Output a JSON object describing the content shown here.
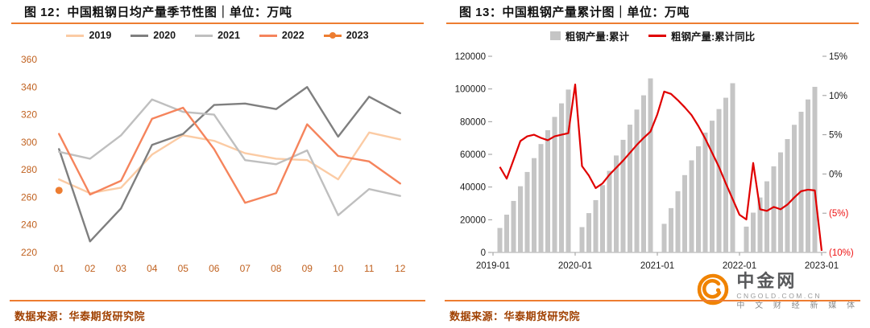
{
  "panels": {
    "left": {
      "title": "图 12：中国粗钢日均产量季节性图｜单位：万吨",
      "source": "数据来源：华泰期货研究院"
    },
    "right": {
      "title": "图 13：中国粗钢产量累计图｜单位：万吨",
      "source": "数据来源：华泰期货研究院"
    }
  },
  "watermark": {
    "brand": "中金网",
    "domain": "CNGOLD.COM.CN",
    "tagline": "中 文 财 经 新 媒 体"
  },
  "colors": {
    "accent": "#ED7D31",
    "source_text": "#A04000",
    "axis_orange": "#C0611F",
    "axis_black": "#1A1A1A",
    "axis_negative_red": "#EE1111",
    "bar_gray": "#C5C5C5",
    "yoy_red": "#E00000",
    "watermark_orange": "#F08300",
    "watermark_gray": "#58595B"
  },
  "chart_data": [
    {
      "type": "line",
      "title": "图 12：中国粗钢日均产量季节性图｜单位：万吨",
      "unit": "万吨",
      "x_categories": [
        "01",
        "02",
        "03",
        "04",
        "05",
        "06",
        "07",
        "08",
        "09",
        "10",
        "11",
        "12"
      ],
      "ylim": [
        220,
        360
      ],
      "ytick_step": 20,
      "legend_position": "top",
      "grid": false,
      "series": [
        {
          "name": "2019",
          "color": "#FBCBA4",
          "values": [
            273,
            263,
            267,
            291,
            305,
            301,
            292,
            288,
            287,
            273,
            307,
            302
          ]
        },
        {
          "name": "2020",
          "color": "#7F7F7F",
          "values": [
            295,
            228,
            252,
            298,
            306,
            327,
            328,
            324,
            340,
            304,
            333,
            321
          ]
        },
        {
          "name": "2021",
          "color": "#BFBFBF",
          "values": [
            293,
            288,
            305,
            331,
            322,
            320,
            287,
            284,
            294,
            247,
            266,
            261
          ]
        },
        {
          "name": "2022",
          "color": "#F5845C",
          "values": [
            306,
            262,
            272,
            317,
            325,
            295,
            256,
            263,
            313,
            290,
            286,
            270
          ]
        },
        {
          "name": "2023",
          "color": "#ED7D31",
          "values": [
            265
          ],
          "marker": "dot"
        }
      ]
    },
    {
      "type": "bar+line",
      "title": "图 13：中国粗钢产量累计图｜单位：万吨",
      "unit": "万吨",
      "legend_position": "top",
      "grid": false,
      "left_axis": {
        "min": 0,
        "max": 120000,
        "step": 20000
      },
      "right_axis": {
        "min": -10,
        "max": 15,
        "ticks": [
          {
            "v": 15,
            "label": "15%"
          },
          {
            "v": 10,
            "label": "10%"
          },
          {
            "v": 5,
            "label": "5%"
          },
          {
            "v": 0,
            "label": "0%"
          },
          {
            "v": -5,
            "label": "(5%)"
          },
          {
            "v": -10,
            "label": "(10%)"
          }
        ]
      },
      "x_range_months": [
        "2019-01",
        "2023-01"
      ],
      "x_tick_labels": [
        "2019-01",
        "2020-01",
        "2021-01",
        "2022-01",
        "2023-01"
      ],
      "bars": {
        "name": "粗钢产量:累计",
        "color": "#C5C5C5",
        "points": [
          [
            "2019-02",
            14958
          ],
          [
            "2019-03",
            23107
          ],
          [
            "2019-04",
            31496
          ],
          [
            "2019-05",
            40488
          ],
          [
            "2019-06",
            49217
          ],
          [
            "2019-07",
            57706
          ],
          [
            "2019-08",
            66303
          ],
          [
            "2019-09",
            74782
          ],
          [
            "2019-10",
            82922
          ],
          [
            "2019-11",
            91202
          ],
          [
            "2019-12",
            99634
          ],
          [
            "2020-02",
            15499
          ],
          [
            "2020-03",
            24056
          ],
          [
            "2020-04",
            32001
          ],
          [
            "2020-05",
            41175
          ],
          [
            "2020-06",
            49901
          ],
          [
            "2020-07",
            59317
          ],
          [
            "2020-08",
            68889
          ],
          [
            "2020-09",
            78159
          ],
          [
            "2020-10",
            87393
          ],
          [
            "2020-11",
            96116
          ],
          [
            "2020-12",
            106477
          ],
          [
            "2021-02",
            17499
          ],
          [
            "2021-03",
            27104
          ],
          [
            "2021-04",
            37456
          ],
          [
            "2021-05",
            47310
          ],
          [
            "2021-06",
            56333
          ],
          [
            "2021-07",
            64933
          ],
          [
            "2021-08",
            73302
          ],
          [
            "2021-09",
            80589
          ],
          [
            "2021-10",
            87705
          ],
          [
            "2021-11",
            94636
          ],
          [
            "2021-12",
            103524
          ],
          [
            "2022-02",
            15796
          ],
          [
            "2022-03",
            24338
          ],
          [
            "2022-04",
            33615
          ],
          [
            "2022-05",
            43502
          ],
          [
            "2022-06",
            52688
          ],
          [
            "2022-07",
            61213
          ],
          [
            "2022-08",
            69354
          ],
          [
            "2022-09",
            78083
          ],
          [
            "2022-10",
            86057
          ],
          [
            "2022-11",
            93586
          ],
          [
            "2022-12",
            101300
          ]
        ]
      },
      "line": {
        "name": "粗钢产量:累计同比",
        "color": "#E00000",
        "points": [
          [
            "2019-02",
            0.9
          ],
          [
            "2019-03",
            -0.6
          ],
          [
            "2019-04",
            1.8
          ],
          [
            "2019-05",
            4.2
          ],
          [
            "2019-06",
            4.8
          ],
          [
            "2019-07",
            5.0
          ],
          [
            "2019-08",
            4.6
          ],
          [
            "2019-09",
            4.3
          ],
          [
            "2019-10",
            4.8
          ],
          [
            "2019-11",
            5.0
          ],
          [
            "2019-12",
            5.2
          ],
          [
            "2020-01",
            11.4
          ],
          [
            "2020-02",
            1.0
          ],
          [
            "2020-03",
            -0.2
          ],
          [
            "2020-04",
            -1.8
          ],
          [
            "2020-05",
            -1.2
          ],
          [
            "2020-06",
            -0.1
          ],
          [
            "2020-07",
            0.8
          ],
          [
            "2020-08",
            1.7
          ],
          [
            "2020-09",
            2.7
          ],
          [
            "2020-10",
            3.7
          ],
          [
            "2020-11",
            4.6
          ],
          [
            "2020-12",
            5.4
          ],
          [
            "2021-01",
            7.6
          ],
          [
            "2021-02",
            10.5
          ],
          [
            "2021-03",
            10.2
          ],
          [
            "2021-04",
            9.4
          ],
          [
            "2021-05",
            8.5
          ],
          [
            "2021-06",
            7.5
          ],
          [
            "2021-07",
            6.1
          ],
          [
            "2021-08",
            4.5
          ],
          [
            "2021-09",
            2.7
          ],
          [
            "2021-10",
            0.9
          ],
          [
            "2021-11",
            -1.2
          ],
          [
            "2021-12",
            -3.2
          ],
          [
            "2022-01",
            -5.2
          ],
          [
            "2022-02",
            -5.8
          ],
          [
            "2022-03",
            1.4
          ],
          [
            "2022-04",
            -4.5
          ],
          [
            "2022-05",
            -4.7
          ],
          [
            "2022-06",
            -4.2
          ],
          [
            "2022-07",
            -4.5
          ],
          [
            "2022-08",
            -3.9
          ],
          [
            "2022-09",
            -3.0
          ],
          [
            "2022-10",
            -2.2
          ],
          [
            "2022-11",
            -2.0
          ],
          [
            "2022-12",
            -2.1
          ],
          [
            "2023-01",
            -9.8
          ]
        ]
      }
    }
  ]
}
